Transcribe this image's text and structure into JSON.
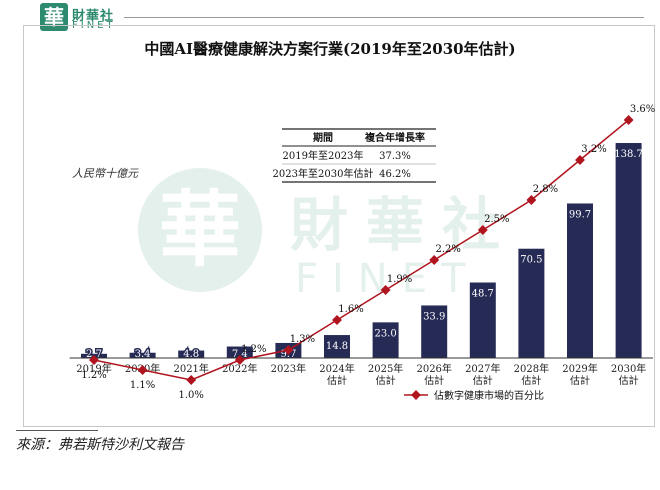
{
  "brand": {
    "seal": "華",
    "name_cn": "財華社",
    "name_en": "FINET"
  },
  "watermark": {
    "seal": "華",
    "name_cn": "財華社",
    "name_en": "FINET"
  },
  "source": "來源：弗若斯特沙利文報告",
  "colors": {
    "bar": "#262b55",
    "line": "#b0141e",
    "brand": "#2d8a6e"
  },
  "chart_data": {
    "type": "bar",
    "title": "中國AI醫療健康解決方案行業(2019年至2030年估計)",
    "ylabel": "人民幣十億元",
    "categories": [
      "2019年",
      "2020年",
      "2021年",
      "2022年",
      "2023年",
      "2024年\n估計",
      "2025年\n估計",
      "2026年\n估計",
      "2027年\n估計",
      "2028年\n估計",
      "2029年\n估計",
      "2030年\n估計"
    ],
    "values": [
      2.7,
      3.4,
      4.8,
      7.4,
      9.7,
      14.8,
      23.0,
      33.9,
      48.7,
      70.5,
      99.7,
      138.7
    ],
    "value_labels": [
      "2.7",
      "3.4",
      "4.8",
      "7.4",
      "9.7",
      "14.8",
      "23.0",
      "33.9",
      "48.7",
      "70.5",
      "99.7",
      "138.7"
    ],
    "line_series": {
      "name": "佔數字健康市場的百分比",
      "values": [
        1.2,
        1.1,
        1.0,
        1.2,
        1.3,
        1.6,
        1.9,
        2.2,
        2.5,
        2.8,
        3.2,
        3.6
      ],
      "labels": [
        "1.2%",
        "1.1%",
        "1.0%",
        "1.2%",
        "1.3%",
        "1.6%",
        "1.9%",
        "2.2%",
        "2.5%",
        "2.8%",
        "3.2%",
        "3.6%"
      ]
    },
    "cagr_table": {
      "headers": [
        "期間",
        "複合年增長率"
      ],
      "rows": [
        [
          "2019年至2023年",
          "37.3%"
        ],
        [
          "2023年至2030年估計",
          "46.2%"
        ]
      ]
    },
    "legend_position": "bottom-center"
  }
}
